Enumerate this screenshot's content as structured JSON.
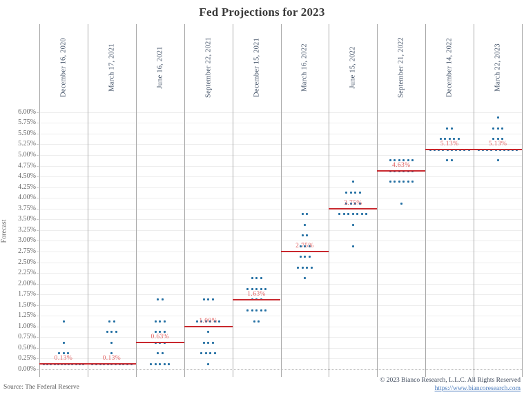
{
  "colors": {
    "dot": "#2470a3",
    "median_line": "#c9282e",
    "median_label": "#e05f5f",
    "grid": "#ededed",
    "separator": "#a8a8a8",
    "link": "#4477bb"
  },
  "footer": {
    "source": "Source: The Federal Reserve",
    "copyright": "© 2023 Bianco Research, L.L.C. All Rights Reserved",
    "url": "https://www.biancoresearch.com"
  },
  "chart_data": {
    "type": "scatter",
    "title": "Fed Projections for 2023",
    "ylabel": "Forecast",
    "ylim": [
      0,
      6.0
    ],
    "ytick_step": 0.25,
    "grid": true,
    "ytick_labels": [
      "0.00%",
      "0.25%",
      "0.50%",
      "0.75%",
      "1.00%",
      "1.25%",
      "1.50%",
      "1.75%",
      "2.00%",
      "2.25%",
      "2.50%",
      "2.75%",
      "3.00%",
      "3.25%",
      "3.50%",
      "3.75%",
      "4.00%",
      "4.25%",
      "4.50%",
      "4.75%",
      "5.00%",
      "5.25%",
      "5.50%",
      "5.75%",
      "6.00%"
    ],
    "categories": [
      "December 16, 2020",
      "March 17, 2021",
      "June 16, 2021",
      "September 22, 2021",
      "December 15, 2021",
      "March 16, 2022",
      "June 15, 2022",
      "September 21, 2022",
      "December 14, 2022",
      "March 22, 2023"
    ],
    "columns": [
      {
        "label": "December 16, 2020",
        "median": 0.13,
        "median_label": "0.13%",
        "dots": [
          [
            0.125,
            12
          ],
          [
            0.375,
            3
          ],
          [
            0.625,
            1
          ],
          [
            1.125,
            1
          ]
        ]
      },
      {
        "label": "March 17, 2021",
        "median": 0.13,
        "median_label": "0.13%",
        "dots": [
          [
            0.125,
            11
          ],
          [
            0.375,
            1
          ],
          [
            0.625,
            1
          ],
          [
            0.875,
            3
          ],
          [
            1.125,
            2
          ]
        ]
      },
      {
        "label": "June 16, 2021",
        "median": 0.63,
        "median_label": "0.63%",
        "dots": [
          [
            0.125,
            5
          ],
          [
            0.375,
            2
          ],
          [
            0.625,
            3
          ],
          [
            0.875,
            3
          ],
          [
            1.125,
            3
          ],
          [
            1.625,
            2
          ]
        ]
      },
      {
        "label": "September 22, 2021",
        "median": 1.0,
        "median_label": "1.00%",
        "dots": [
          [
            0.125,
            1
          ],
          [
            0.375,
            4
          ],
          [
            0.625,
            3
          ],
          [
            0.875,
            1
          ],
          [
            1.125,
            6
          ],
          [
            1.625,
            3
          ]
        ]
      },
      {
        "label": "December 15, 2021",
        "median": 1.63,
        "median_label": "1.63%",
        "dots": [
          [
            1.125,
            2
          ],
          [
            1.375,
            5
          ],
          [
            1.625,
            3
          ],
          [
            1.875,
            5
          ],
          [
            2.125,
            3
          ]
        ]
      },
      {
        "label": "March 16, 2022",
        "median": 2.75,
        "median_label": "2.75%",
        "dots": [
          [
            2.125,
            1
          ],
          [
            2.375,
            4
          ],
          [
            2.625,
            3
          ],
          [
            2.875,
            3
          ],
          [
            3.125,
            2
          ],
          [
            3.375,
            1
          ],
          [
            3.625,
            2
          ]
        ]
      },
      {
        "label": "June 15, 2022",
        "median": 3.75,
        "median_label": "3.75%",
        "dots": [
          [
            2.875,
            1
          ],
          [
            3.375,
            1
          ],
          [
            3.625,
            7
          ],
          [
            3.875,
            4
          ],
          [
            4.125,
            4
          ],
          [
            4.375,
            1
          ]
        ]
      },
      {
        "label": "September 21, 2022",
        "median": 4.63,
        "median_label": "4.63%",
        "dots": [
          [
            3.875,
            1
          ],
          [
            4.375,
            6
          ],
          [
            4.625,
            6
          ],
          [
            4.875,
            6
          ]
        ]
      },
      {
        "label": "December 14, 2022",
        "median": 5.13,
        "median_label": "5.13%",
        "dots": [
          [
            4.875,
            2
          ],
          [
            5.125,
            10
          ],
          [
            5.375,
            5
          ],
          [
            5.625,
            2
          ]
        ]
      },
      {
        "label": "March 22, 2023",
        "median": 5.13,
        "median_label": "5.13%",
        "dots": [
          [
            4.875,
            1
          ],
          [
            5.125,
            10
          ],
          [
            5.375,
            3
          ],
          [
            5.625,
            3
          ],
          [
            5.875,
            1
          ]
        ]
      }
    ]
  }
}
